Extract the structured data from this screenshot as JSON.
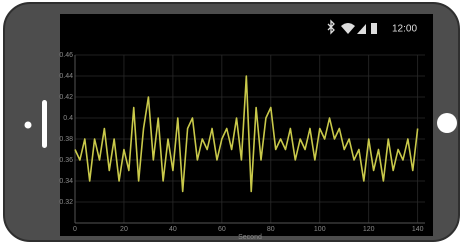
{
  "status_bar": {
    "time": "12:00"
  },
  "chart_data": {
    "type": "line",
    "x_label": "Second",
    "color": "#c9c94a",
    "grid": true,
    "x": [
      0,
      2,
      4,
      6,
      8,
      10,
      12,
      14,
      16,
      18,
      20,
      22,
      24,
      26,
      28,
      30,
      32,
      34,
      36,
      38,
      40,
      42,
      44,
      46,
      48,
      50,
      52,
      54,
      56,
      58,
      60,
      62,
      64,
      66,
      68,
      70,
      72,
      74,
      76,
      78,
      80,
      82,
      84,
      86,
      88,
      90,
      92,
      94,
      96,
      98,
      100,
      102,
      104,
      106,
      108,
      110,
      112,
      114,
      116,
      118,
      120,
      122,
      124,
      126,
      128,
      130,
      132,
      134,
      136,
      138,
      140
    ],
    "values": [
      0.37,
      0.36,
      0.38,
      0.34,
      0.38,
      0.36,
      0.39,
      0.35,
      0.38,
      0.34,
      0.37,
      0.35,
      0.41,
      0.34,
      0.39,
      0.42,
      0.36,
      0.4,
      0.34,
      0.38,
      0.35,
      0.4,
      0.33,
      0.39,
      0.4,
      0.36,
      0.38,
      0.37,
      0.39,
      0.36,
      0.38,
      0.39,
      0.37,
      0.4,
      0.36,
      0.44,
      0.33,
      0.41,
      0.36,
      0.4,
      0.41,
      0.37,
      0.38,
      0.37,
      0.39,
      0.36,
      0.38,
      0.37,
      0.39,
      0.36,
      0.39,
      0.38,
      0.4,
      0.38,
      0.39,
      0.37,
      0.38,
      0.36,
      0.37,
      0.34,
      0.38,
      0.35,
      0.37,
      0.34,
      0.38,
      0.35,
      0.37,
      0.36,
      0.38,
      0.35,
      0.39
    ],
    "xlim": [
      0,
      143
    ],
    "xticks": [
      0,
      20,
      40,
      60,
      80,
      100,
      120,
      140
    ],
    "ylim": [
      0.3,
      0.46
    ],
    "yticks": [
      0.32,
      0.34,
      0.36,
      0.38,
      0.4,
      0.42,
      0.44,
      0.46
    ]
  }
}
